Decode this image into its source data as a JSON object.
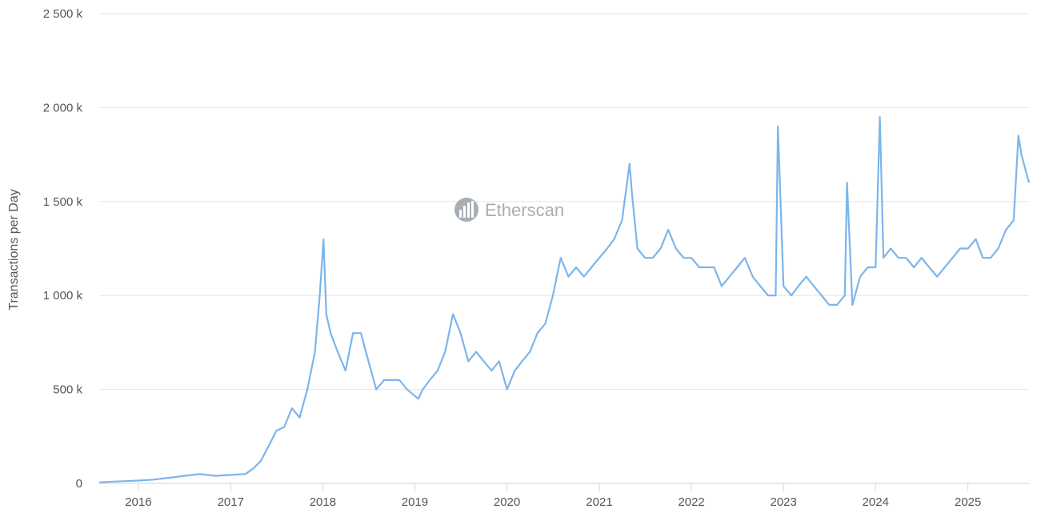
{
  "chart_data": {
    "type": "line",
    "title": "",
    "xlabel": "",
    "ylabel": "Transactions per Day",
    "watermark": "Etherscan",
    "grid": true,
    "legend": "none",
    "line_color": "#7cb5ec",
    "grid_color": "#e6e6e6",
    "xlim": [
      "2015-07-30",
      "2025-08-31"
    ],
    "ylim": [
      0,
      2500000
    ],
    "x_ticks": [
      "2016",
      "2017",
      "2018",
      "2019",
      "2020",
      "2021",
      "2022",
      "2023",
      "2024",
      "2025"
    ],
    "y_ticks": [
      {
        "value": 0,
        "label": "0"
      },
      {
        "value": 500000,
        "label": "500 k"
      },
      {
        "value": 1000000,
        "label": "1 000 k"
      },
      {
        "value": 1500000,
        "label": "1 500 k"
      },
      {
        "value": 2000000,
        "label": "2 000 k"
      },
      {
        "value": 2500000,
        "label": "2 500 k"
      }
    ],
    "series": [
      {
        "x": [
          "2015-07-30",
          "2015-10-01",
          "2016-01-01",
          "2016-03-01",
          "2016-05-01",
          "2016-07-01",
          "2016-09-01",
          "2016-11-01",
          "2017-01-01",
          "2017-03-01",
          "2017-04-01",
          "2017-05-01",
          "2017-06-01",
          "2017-07-01",
          "2017-08-01",
          "2017-09-01",
          "2017-10-01",
          "2017-11-01",
          "2017-12-01",
          "2017-12-20",
          "2018-01-04",
          "2018-01-15",
          "2018-02-01",
          "2018-03-01",
          "2018-04-01",
          "2018-05-01",
          "2018-06-01",
          "2018-07-01",
          "2018-08-01",
          "2018-09-01",
          "2018-10-01",
          "2018-11-01",
          "2018-12-01",
          "2019-01-15",
          "2019-02-01",
          "2019-03-01",
          "2019-04-01",
          "2019-05-01",
          "2019-06-01",
          "2019-07-01",
          "2019-08-01",
          "2019-09-01",
          "2019-10-01",
          "2019-11-01",
          "2019-12-01",
          "2020-01-01",
          "2020-02-01",
          "2020-03-01",
          "2020-04-01",
          "2020-05-01",
          "2020-06-01",
          "2020-07-01",
          "2020-08-01",
          "2020-09-01",
          "2020-10-01",
          "2020-11-01",
          "2020-12-01",
          "2021-01-01",
          "2021-02-01",
          "2021-03-01",
          "2021-04-01",
          "2021-05-01",
          "2021-05-10",
          "2021-06-01",
          "2021-07-01",
          "2021-08-01",
          "2021-09-01",
          "2021-10-01",
          "2021-11-01",
          "2021-12-01",
          "2022-01-01",
          "2022-02-01",
          "2022-03-01",
          "2022-04-01",
          "2022-05-01",
          "2022-06-01",
          "2022-07-01",
          "2022-08-01",
          "2022-09-01",
          "2022-10-01",
          "2022-11-01",
          "2022-12-01",
          "2022-12-10",
          "2023-01-01",
          "2023-02-01",
          "2023-03-01",
          "2023-04-01",
          "2023-05-01",
          "2023-06-01",
          "2023-07-01",
          "2023-08-01",
          "2023-09-01",
          "2023-09-10",
          "2023-10-01",
          "2023-11-01",
          "2023-12-01",
          "2024-01-01",
          "2024-01-18",
          "2024-02-01",
          "2024-03-01",
          "2024-04-01",
          "2024-05-01",
          "2024-06-01",
          "2024-07-01",
          "2024-08-01",
          "2024-09-01",
          "2024-10-01",
          "2024-11-01",
          "2024-12-01",
          "2025-01-01",
          "2025-02-01",
          "2025-03-01",
          "2025-04-01",
          "2025-05-01",
          "2025-06-01",
          "2025-07-01",
          "2025-07-20",
          "2025-08-01",
          "2025-08-31"
        ],
        "y": [
          5000,
          10000,
          15000,
          20000,
          30000,
          40000,
          50000,
          40000,
          45000,
          50000,
          80000,
          120000,
          200000,
          280000,
          300000,
          400000,
          350000,
          500000,
          700000,
          1000000,
          1300000,
          900000,
          800000,
          700000,
          600000,
          800000,
          800000,
          650000,
          500000,
          550000,
          550000,
          550000,
          500000,
          450000,
          500000,
          550000,
          600000,
          700000,
          900000,
          800000,
          650000,
          700000,
          650000,
          600000,
          650000,
          500000,
          600000,
          650000,
          700000,
          800000,
          850000,
          1000000,
          1200000,
          1100000,
          1150000,
          1100000,
          1150000,
          1200000,
          1250000,
          1300000,
          1400000,
          1700000,
          1550000,
          1250000,
          1200000,
          1200000,
          1250000,
          1350000,
          1250000,
          1200000,
          1200000,
          1150000,
          1150000,
          1150000,
          1050000,
          1100000,
          1150000,
          1200000,
          1100000,
          1050000,
          1000000,
          1000000,
          1900000,
          1050000,
          1000000,
          1050000,
          1100000,
          1050000,
          1000000,
          950000,
          950000,
          1000000,
          1600000,
          950000,
          1100000,
          1150000,
          1150000,
          1950000,
          1200000,
          1250000,
          1200000,
          1200000,
          1150000,
          1200000,
          1150000,
          1100000,
          1150000,
          1200000,
          1250000,
          1250000,
          1300000,
          1200000,
          1200000,
          1250000,
          1350000,
          1400000,
          1850000,
          1750000,
          1600000
        ]
      }
    ]
  }
}
